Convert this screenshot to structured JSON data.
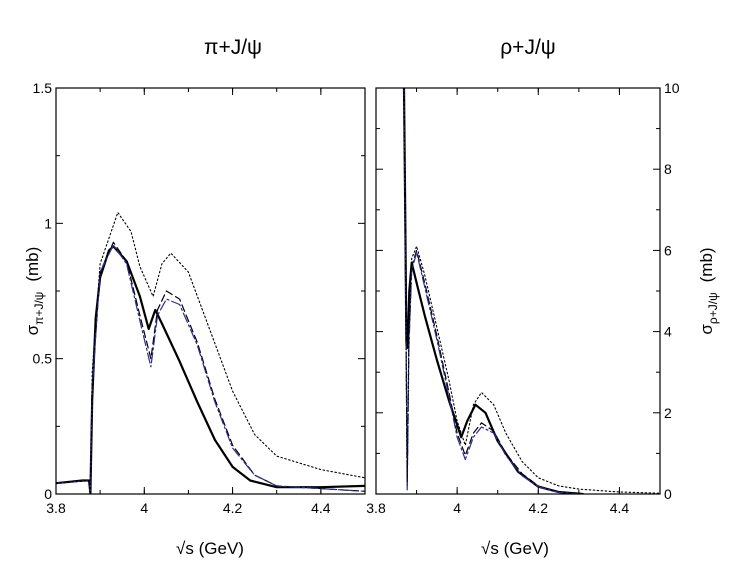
{
  "chart_data": [
    {
      "type": "line",
      "title": "π+J/ψ",
      "xlabel": "√s  (GeV)",
      "ylabel": "σ",
      "ylabel_sub": "π+J/ψ",
      "ylabel_unit": "(mb)",
      "xlim": [
        3.8,
        4.5
      ],
      "ylim": [
        0,
        1.5
      ],
      "xticks": [
        "3.8",
        "4",
        "4.2",
        "4.4"
      ],
      "yticks": [
        "0",
        "0.5",
        "1",
        "1.5"
      ],
      "series": [
        {
          "name": "solid",
          "color": "#000000",
          "style": "solid",
          "points": [
            [
              3.8,
              0.04
            ],
            [
              3.86,
              0.05
            ],
            [
              3.875,
              0.05
            ],
            [
              3.878,
              0.0
            ],
            [
              3.882,
              0.35
            ],
            [
              3.89,
              0.65
            ],
            [
              3.9,
              0.8
            ],
            [
              3.92,
              0.9
            ],
            [
              3.93,
              0.915
            ],
            [
              3.96,
              0.86
            ],
            [
              3.99,
              0.73
            ],
            [
              4.01,
              0.61
            ],
            [
              4.025,
              0.68
            ],
            [
              4.04,
              0.63
            ],
            [
              4.08,
              0.49
            ],
            [
              4.12,
              0.34
            ],
            [
              4.16,
              0.2
            ],
            [
              4.2,
              0.1
            ],
            [
              4.24,
              0.05
            ],
            [
              4.3,
              0.025
            ],
            [
              4.4,
              0.025
            ],
            [
              4.5,
              0.03
            ]
          ]
        },
        {
          "name": "dashed",
          "color": "#000000",
          "style": "dashed",
          "points": [
            [
              3.8,
              0.04
            ],
            [
              3.875,
              0.05
            ],
            [
              3.878,
              0.0
            ],
            [
              3.882,
              0.4
            ],
            [
              3.9,
              0.82
            ],
            [
              3.93,
              0.93
            ],
            [
              3.96,
              0.86
            ],
            [
              3.99,
              0.66
            ],
            [
              4.015,
              0.5
            ],
            [
              4.03,
              0.68
            ],
            [
              4.05,
              0.75
            ],
            [
              4.08,
              0.72
            ],
            [
              4.12,
              0.56
            ],
            [
              4.16,
              0.35
            ],
            [
              4.2,
              0.18
            ],
            [
              4.25,
              0.07
            ],
            [
              4.3,
              0.03
            ],
            [
              4.5,
              0.01
            ]
          ]
        },
        {
          "name": "dash-dot blue",
          "color": "#2b2b9a",
          "style": "dashdot",
          "points": [
            [
              3.8,
              0.04
            ],
            [
              3.875,
              0.05
            ],
            [
              3.878,
              0.0
            ],
            [
              3.882,
              0.4
            ],
            [
              3.9,
              0.82
            ],
            [
              3.93,
              0.92
            ],
            [
              3.96,
              0.85
            ],
            [
              3.99,
              0.64
            ],
            [
              4.015,
              0.47
            ],
            [
              4.03,
              0.66
            ],
            [
              4.05,
              0.72
            ],
            [
              4.08,
              0.7
            ],
            [
              4.12,
              0.55
            ],
            [
              4.16,
              0.34
            ],
            [
              4.2,
              0.17
            ],
            [
              4.25,
              0.07
            ],
            [
              4.3,
              0.03
            ],
            [
              4.5,
              0.01
            ]
          ]
        },
        {
          "name": "dotted",
          "color": "#000000",
          "style": "dotted",
          "points": [
            [
              3.8,
              0.04
            ],
            [
              3.875,
              0.05
            ],
            [
              3.878,
              0.0
            ],
            [
              3.882,
              0.45
            ],
            [
              3.9,
              0.85
            ],
            [
              3.94,
              1.04
            ],
            [
              3.97,
              0.97
            ],
            [
              3.99,
              0.84
            ],
            [
              4.02,
              0.73
            ],
            [
              4.04,
              0.85
            ],
            [
              4.06,
              0.89
            ],
            [
              4.1,
              0.82
            ],
            [
              4.15,
              0.6
            ],
            [
              4.2,
              0.38
            ],
            [
              4.25,
              0.22
            ],
            [
              4.3,
              0.14
            ],
            [
              4.4,
              0.09
            ],
            [
              4.5,
              0.06
            ]
          ]
        }
      ]
    },
    {
      "type": "line",
      "title": "ρ+J/ψ",
      "xlabel": "√s  (GeV)",
      "ylabel": "σ",
      "ylabel_sub": "ρ+J/ψ",
      "ylabel_unit": "(mb)",
      "xlim": [
        3.8,
        4.5
      ],
      "ylim": [
        0,
        10
      ],
      "xticks": [
        "3.8",
        "4",
        "4.2",
        "4.4"
      ],
      "yticks": [
        "0",
        "2",
        "4",
        "6",
        "8",
        "10"
      ],
      "series": [
        {
          "name": "solid",
          "color": "#000000",
          "style": "solid",
          "points": [
            [
              3.869,
              10
            ],
            [
              3.872,
              7
            ],
            [
              3.875,
              3.7
            ],
            [
              3.878,
              3.6
            ],
            [
              3.882,
              5.0
            ],
            [
              3.888,
              5.7
            ],
            [
              3.9,
              5.2
            ],
            [
              3.92,
              4.4
            ],
            [
              3.95,
              3.3
            ],
            [
              3.98,
              2.3
            ],
            [
              4.01,
              1.4
            ],
            [
              4.025,
              1.8
            ],
            [
              4.045,
              2.2
            ],
            [
              4.07,
              2.0
            ],
            [
              4.1,
              1.3
            ],
            [
              4.15,
              0.55
            ],
            [
              4.2,
              0.18
            ],
            [
              4.25,
              0.05
            ],
            [
              4.31,
              0.0
            ]
          ]
        },
        {
          "name": "dashed",
          "color": "#000000",
          "style": "dashed",
          "points": [
            [
              3.869,
              10
            ],
            [
              3.874,
              4
            ],
            [
              3.877,
              0.2
            ],
            [
              3.881,
              3.8
            ],
            [
              3.888,
              5.6
            ],
            [
              3.9,
              6.0
            ],
            [
              3.92,
              5.2
            ],
            [
              3.95,
              3.9
            ],
            [
              3.98,
              2.5
            ],
            [
              4.0,
              1.5
            ],
            [
              4.02,
              0.95
            ],
            [
              4.04,
              1.5
            ],
            [
              4.06,
              1.75
            ],
            [
              4.09,
              1.55
            ],
            [
              4.12,
              1.0
            ],
            [
              4.16,
              0.5
            ],
            [
              4.2,
              0.2
            ],
            [
              4.25,
              0.05
            ],
            [
              4.3,
              0.0
            ]
          ]
        },
        {
          "name": "dash-dot blue",
          "color": "#2b2b9a",
          "style": "dashdot",
          "points": [
            [
              3.869,
              10
            ],
            [
              3.874,
              4
            ],
            [
              3.877,
              0.1
            ],
            [
              3.881,
              3.6
            ],
            [
              3.888,
              5.5
            ],
            [
              3.9,
              5.95
            ],
            [
              3.92,
              5.1
            ],
            [
              3.95,
              3.8
            ],
            [
              3.98,
              2.4
            ],
            [
              4.0,
              1.4
            ],
            [
              4.02,
              0.85
            ],
            [
              4.04,
              1.4
            ],
            [
              4.06,
              1.65
            ],
            [
              4.09,
              1.5
            ],
            [
              4.12,
              0.95
            ],
            [
              4.16,
              0.45
            ],
            [
              4.2,
              0.18
            ],
            [
              4.25,
              0.04
            ],
            [
              4.3,
              0.0
            ]
          ]
        },
        {
          "name": "dotted",
          "color": "#000000",
          "style": "dotted",
          "points": [
            [
              3.869,
              10
            ],
            [
              3.874,
              4
            ],
            [
              3.877,
              0.3
            ],
            [
              3.881,
              4.0
            ],
            [
              3.888,
              5.8
            ],
            [
              3.9,
              6.1
            ],
            [
              3.92,
              5.4
            ],
            [
              3.95,
              4.1
            ],
            [
              3.98,
              2.8
            ],
            [
              4.0,
              1.8
            ],
            [
              4.02,
              1.2
            ],
            [
              4.04,
              2.2
            ],
            [
              4.06,
              2.5
            ],
            [
              4.09,
              2.2
            ],
            [
              4.12,
              1.5
            ],
            [
              4.16,
              0.8
            ],
            [
              4.2,
              0.4
            ],
            [
              4.25,
              0.2
            ],
            [
              4.3,
              0.12
            ],
            [
              4.4,
              0.05
            ],
            [
              4.5,
              0.02
            ]
          ]
        }
      ]
    }
  ]
}
